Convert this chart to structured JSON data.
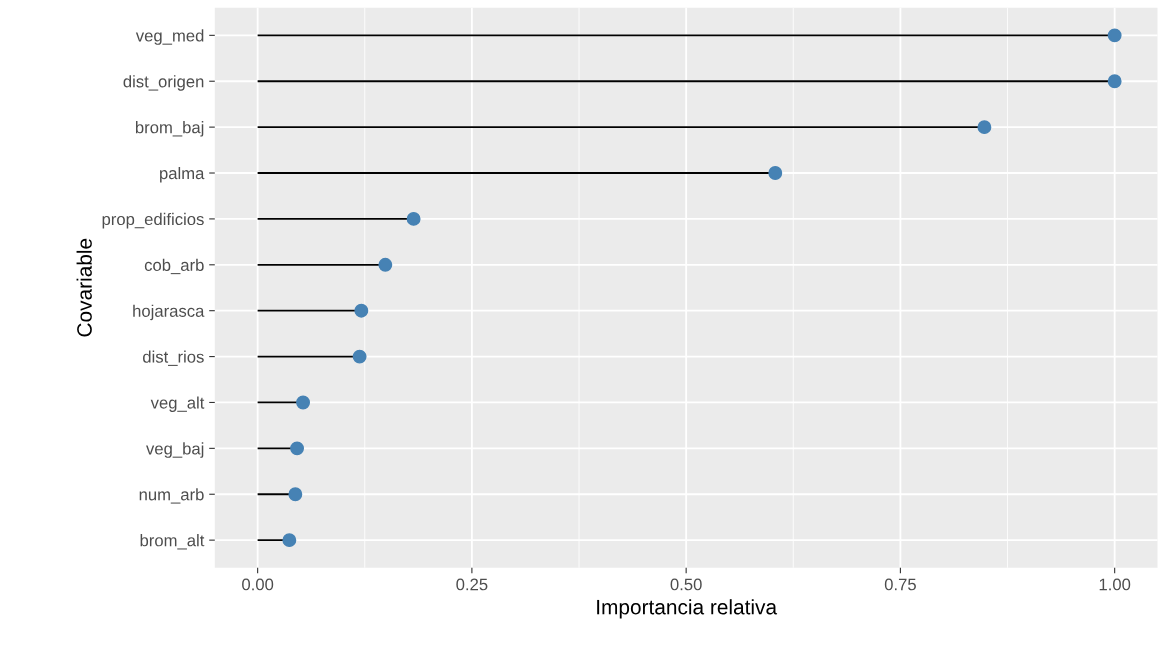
{
  "chart_data": {
    "type": "lollipop",
    "orientation": "horizontal",
    "xlabel": "Importancia relativa",
    "ylabel": "Covariable",
    "categories": [
      "veg_med",
      "dist_origen",
      "brom_baj",
      "palma",
      "prop_edificios",
      "cob_arb",
      "hojarasca",
      "dist_rios",
      "veg_alt",
      "veg_baj",
      "num_arb",
      "brom_alt"
    ],
    "values": [
      1.0,
      1.0,
      0.848,
      0.604,
      0.182,
      0.149,
      0.121,
      0.119,
      0.053,
      0.046,
      0.044,
      0.037
    ],
    "color": "#4682b4",
    "marker": "circle",
    "xlim": [
      -0.05,
      1.05
    ],
    "xticks": [
      {
        "value": 0,
        "label": "0.00"
      },
      {
        "value": 0.25,
        "label": "0.25"
      },
      {
        "value": 0.5,
        "label": "0.50"
      },
      {
        "value": 0.75,
        "label": "0.75"
      },
      {
        "value": 1,
        "label": "1.00"
      }
    ],
    "grid": true
  }
}
